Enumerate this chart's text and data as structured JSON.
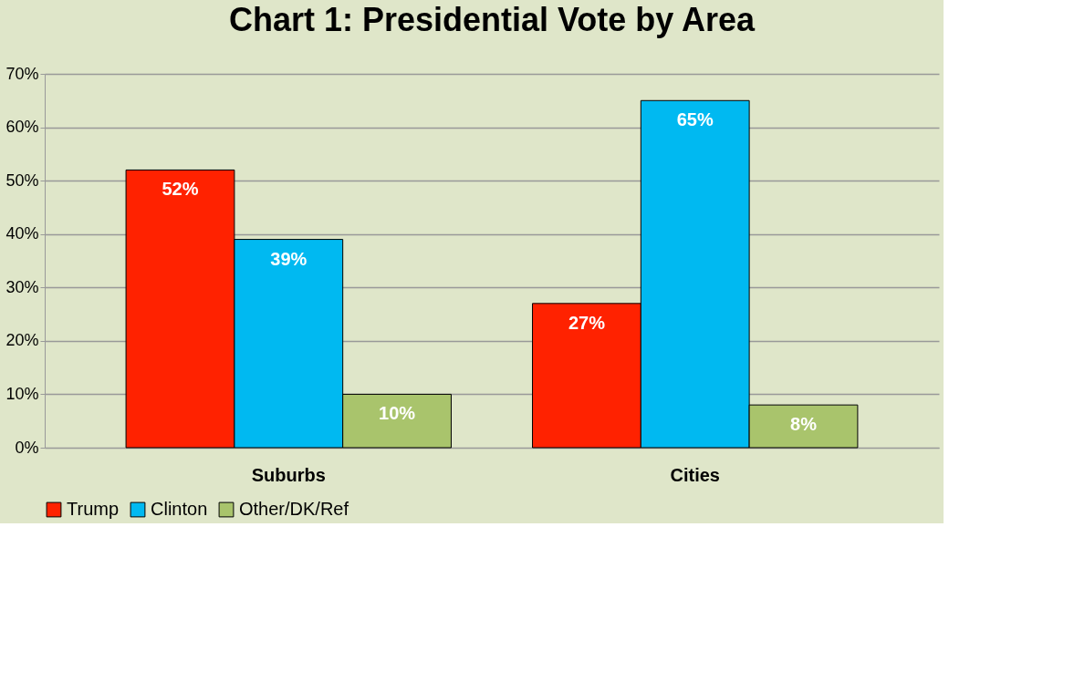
{
  "chart_data": {
    "type": "bar",
    "title": "Chart 1: Presidential Vote by Area",
    "categories": [
      "Suburbs",
      "Cities"
    ],
    "series": [
      {
        "name": "Trump",
        "color": "#ff2200",
        "values": [
          52,
          27
        ],
        "value_labels": [
          "52%",
          "27%"
        ]
      },
      {
        "name": "Clinton",
        "color": "#00b9f1",
        "values": [
          39,
          65
        ],
        "value_labels": [
          "39%",
          "65%"
        ]
      },
      {
        "name": "Other/DK/Ref",
        "color": "#a9c46c",
        "values": [
          10,
          8
        ],
        "value_labels": [
          "10%",
          "8%"
        ]
      }
    ],
    "ylim": [
      0,
      70
    ],
    "yticks": [
      {
        "value": 0,
        "label": "0%"
      },
      {
        "value": 10,
        "label": "10%"
      },
      {
        "value": 20,
        "label": "20%"
      },
      {
        "value": 30,
        "label": "30%"
      },
      {
        "value": 40,
        "label": "40%"
      },
      {
        "value": 50,
        "label": "50%"
      },
      {
        "value": 60,
        "label": "60%"
      },
      {
        "value": 70,
        "label": "70%"
      }
    ],
    "grid": "y",
    "legend": "bottom"
  }
}
